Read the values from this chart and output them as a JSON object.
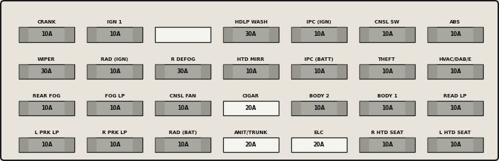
{
  "fig_w": 7.18,
  "fig_h": 2.33,
  "dpi": 100,
  "bg_color": "#e8e4dc",
  "border_color": "#1a1a1a",
  "fuse_gray": "#a8a8a0",
  "fuse_white": "#f5f5f0",
  "text_color": "#111111",
  "label_fontsize": 5.0,
  "amp_fontsize": 5.5,
  "rows": [
    [
      {
        "label": "CRANK",
        "amp": "10A",
        "gray": true
      },
      {
        "label": "IGN 1",
        "amp": "10A",
        "gray": true
      },
      {
        "label": "",
        "amp": "",
        "gray": false
      },
      {
        "label": "HDLP WASH",
        "amp": "30A",
        "gray": true
      },
      {
        "label": "IPC (IGN)",
        "amp": "10A",
        "gray": true
      },
      {
        "label": "CNSL SW",
        "amp": "10A",
        "gray": true
      },
      {
        "label": "ABS",
        "amp": "10A",
        "gray": true
      }
    ],
    [
      {
        "label": "WIPER",
        "amp": "30A",
        "gray": true
      },
      {
        "label": "RAD (IGN)",
        "amp": "10A",
        "gray": true
      },
      {
        "label": "R DEFOG",
        "amp": "30A",
        "gray": true
      },
      {
        "label": "HTD MIRR",
        "amp": "10A",
        "gray": true
      },
      {
        "label": "IPC (BATT)",
        "amp": "10A",
        "gray": true
      },
      {
        "label": "THEFT",
        "amp": "10A",
        "gray": true
      },
      {
        "label": "HVAC/DAB/E",
        "amp": "10A",
        "gray": true
      }
    ],
    [
      {
        "label": "REAR FOG",
        "amp": "10A",
        "gray": true
      },
      {
        "label": "FOG LP",
        "amp": "10A",
        "gray": true
      },
      {
        "label": "CNSL FAN",
        "amp": "10A",
        "gray": true
      },
      {
        "label": "CIGAR",
        "amp": "20A",
        "gray": false
      },
      {
        "label": "BODY 2",
        "amp": "10A",
        "gray": true
      },
      {
        "label": "BODY 1",
        "amp": "10A",
        "gray": true
      },
      {
        "label": "READ LP",
        "amp": "10A",
        "gray": true
      }
    ],
    [
      {
        "label": "L PRK LP",
        "amp": "10A",
        "gray": true
      },
      {
        "label": "R PRK LP",
        "amp": "10A",
        "gray": true
      },
      {
        "label": "RAD (BAT)",
        "amp": "10A",
        "gray": true
      },
      {
        "label": "ANIT/TRUNK",
        "amp": "20A",
        "gray": false
      },
      {
        "label": "ELC",
        "amp": "20A",
        "gray": false
      },
      {
        "label": "R HTD SEAT",
        "amp": "10A",
        "gray": true
      },
      {
        "label": "L HTD SEAT",
        "amp": "10A",
        "gray": true
      }
    ]
  ]
}
